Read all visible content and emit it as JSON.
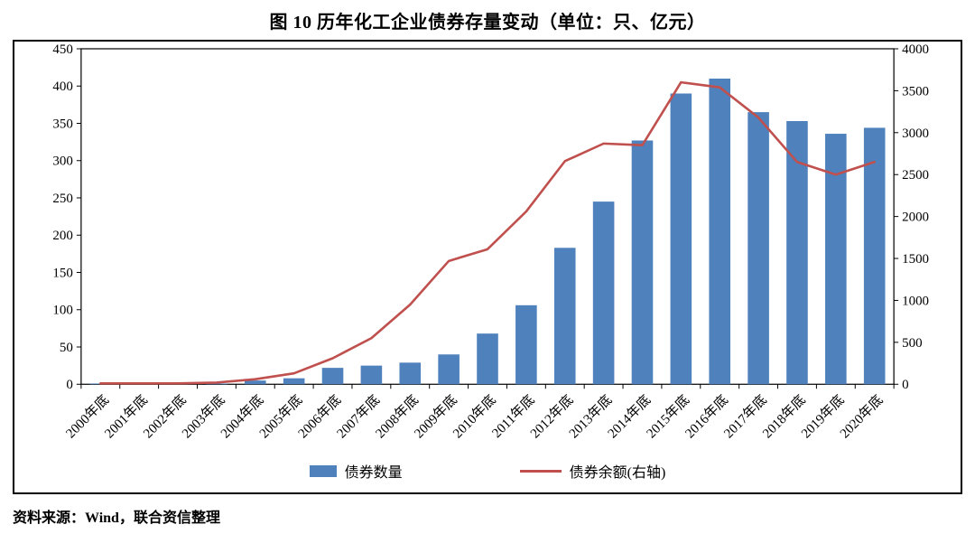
{
  "title": "图 10  历年化工企业债券存量变动（单位：只、亿元）",
  "source_note": "资料来源：Wind，联合资信整理",
  "chart_data": {
    "type": "bar+line",
    "title": "图 10  历年化工企业债券存量变动（单位：只、亿元）",
    "categories": [
      "2000年底",
      "2001年底",
      "2002年底",
      "2003年底",
      "2004年底",
      "2005年底",
      "2006年底",
      "2007年底",
      "2008年底",
      "2009年底",
      "2010年底",
      "2011年底",
      "2012年底",
      "2013年底",
      "2014年底",
      "2015年底",
      "2016年底",
      "2017年底",
      "2018年底",
      "2019年底",
      "2020年底"
    ],
    "series": [
      {
        "name": "债券数量",
        "type": "bar",
        "axis": "left",
        "color": "#4F81BD",
        "values": [
          1,
          1,
          1,
          1,
          5,
          8,
          22,
          25,
          29,
          40,
          68,
          106,
          183,
          245,
          327,
          390,
          410,
          365,
          353,
          336,
          344
        ]
      },
      {
        "name": "债券余额(右轴)",
        "type": "line",
        "axis": "right",
        "color": "#C0504D",
        "values": [
          10,
          10,
          10,
          20,
          60,
          130,
          310,
          550,
          950,
          1470,
          1610,
          2060,
          2660,
          2870,
          2850,
          3600,
          3540,
          3180,
          2650,
          2500,
          2650
        ]
      }
    ],
    "left_axis": {
      "min": 0,
      "max": 450,
      "step": 50
    },
    "right_axis": {
      "min": 0,
      "max": 4000,
      "step": 500
    },
    "legend_position": "bottom",
    "grid": false
  }
}
